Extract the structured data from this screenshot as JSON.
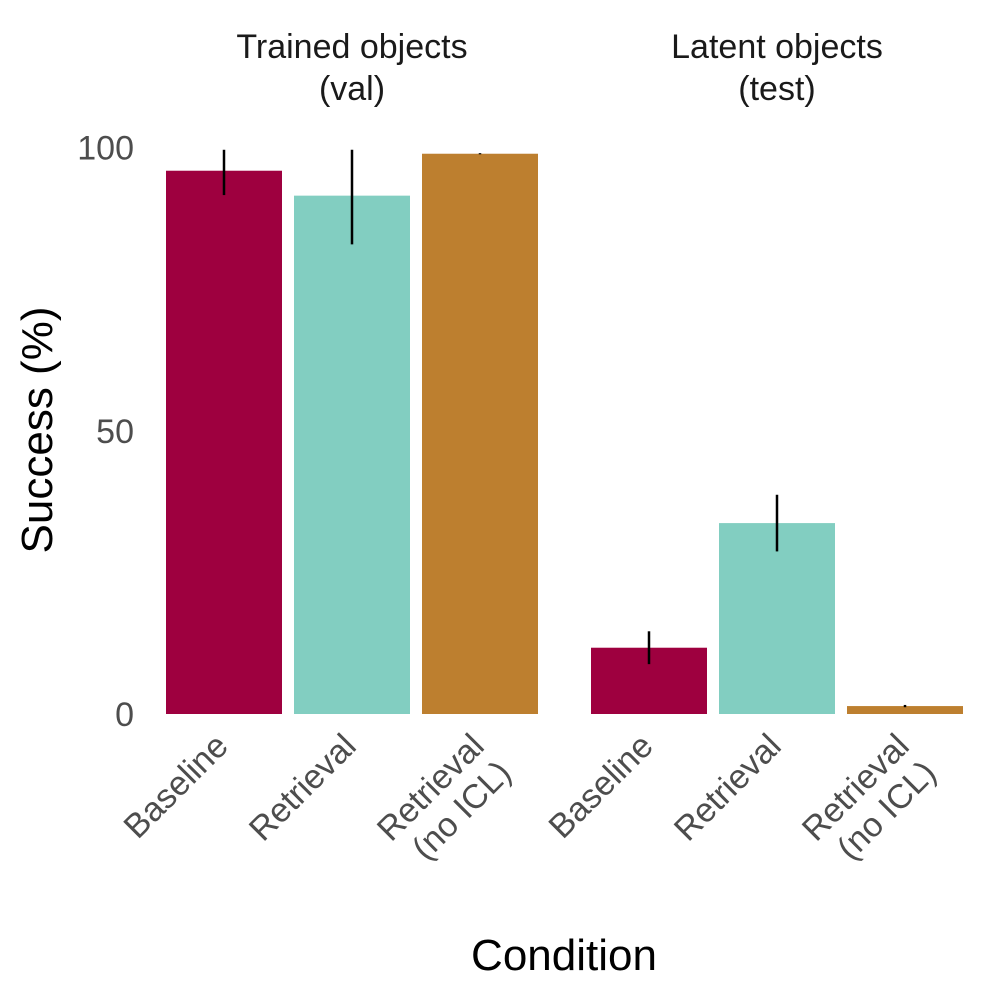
{
  "chart_data": {
    "type": "bar",
    "xlabel": "Condition",
    "ylabel": "Success (%)",
    "ylim": [
      0,
      100
    ],
    "yticks": [
      0,
      50,
      100
    ],
    "grid": false,
    "legend": "none",
    "categories": [
      "Baseline",
      "Retrieval",
      "Retrieval\n(no ICL)"
    ],
    "colors": [
      "#9e003f",
      "#82cec1",
      "#bd7f2f"
    ],
    "facets": [
      {
        "title": "Trained objects\n(val)",
        "bars": [
          {
            "category": "Baseline",
            "value": 95.9,
            "err_low": 91.6,
            "err_high": 99.6
          },
          {
            "category": "Retrieval",
            "value": 91.5,
            "err_low": 82.9,
            "err_high": 99.6
          },
          {
            "category": "Retrieval\n(no ICL)",
            "value": 98.9,
            "err_low": 98.8,
            "err_high": 99.0
          }
        ]
      },
      {
        "title": "Latent objects\n(test)",
        "bars": [
          {
            "category": "Baseline",
            "value": 11.7,
            "err_low": 8.8,
            "err_high": 14.6
          },
          {
            "category": "Retrieval",
            "value": 33.7,
            "err_low": 28.7,
            "err_high": 38.7
          },
          {
            "category": "Retrieval\n(no ICL)",
            "value": 1.4,
            "err_low": 1.2,
            "err_high": 1.6
          }
        ]
      }
    ]
  }
}
